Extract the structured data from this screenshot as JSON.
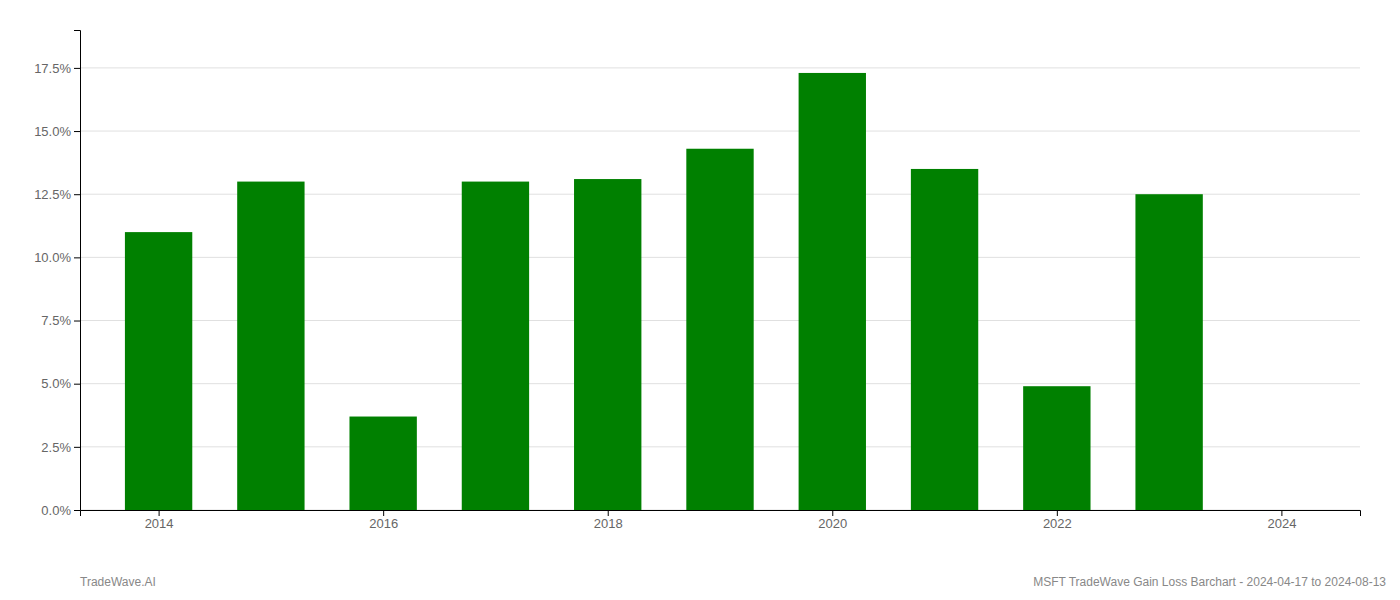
{
  "chart_data": {
    "type": "bar",
    "x": [
      2014,
      2015,
      2016,
      2017,
      2018,
      2019,
      2020,
      2021,
      2022,
      2023
    ],
    "values": [
      0.11,
      0.13,
      0.037,
      0.13,
      0.131,
      0.143,
      0.173,
      0.135,
      0.049,
      0.125
    ],
    "color": "#008000",
    "xlim": [
      2013.3,
      2024.7
    ],
    "xticks": [
      2014,
      2016,
      2018,
      2020,
      2022,
      2024
    ],
    "ylim": [
      0,
      0.19
    ],
    "yticks": [
      {
        "value": 0.0,
        "label": "0.0%"
      },
      {
        "value": 0.025,
        "label": "2.5%"
      },
      {
        "value": 0.05,
        "label": "5.0%"
      },
      {
        "value": 0.075,
        "label": "7.5%"
      },
      {
        "value": 0.1,
        "label": "10.0%"
      },
      {
        "value": 0.125,
        "label": "12.5%"
      },
      {
        "value": 0.15,
        "label": "15.0%"
      },
      {
        "value": 0.175,
        "label": "17.5%"
      }
    ],
    "grid": true,
    "annotations": [
      "TradeWave.AI",
      "MSFT TradeWave Gain Loss Barchart - 2024-04-17 to 2024-08-13"
    ]
  }
}
